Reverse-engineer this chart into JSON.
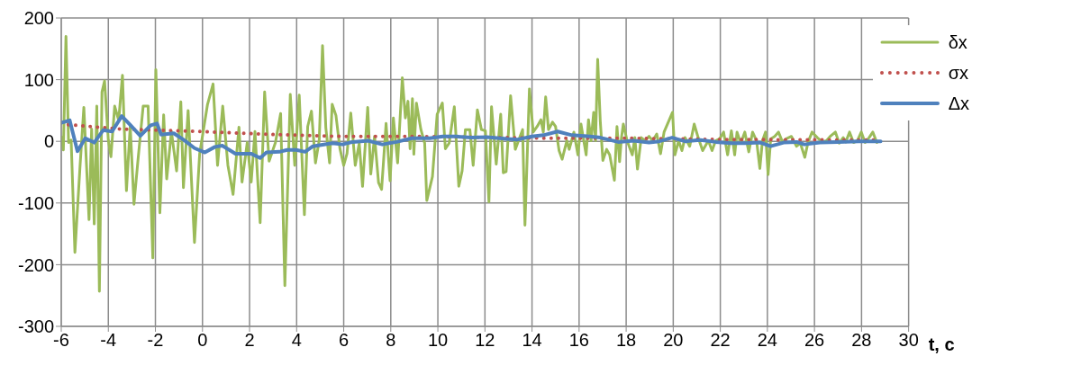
{
  "chart_data": {
    "type": "line",
    "xlabel": "t, c",
    "xlim": [
      -6,
      30
    ],
    "xticks": [
      -6,
      -4,
      -2,
      0,
      2,
      4,
      6,
      8,
      10,
      12,
      14,
      16,
      18,
      20,
      22,
      24,
      26,
      28,
      30
    ],
    "ylim": [
      -300,
      200
    ],
    "yticks": [
      -300,
      -200,
      -100,
      0,
      100,
      200
    ],
    "grid": true,
    "legend": "top right",
    "marker": "none",
    "series": [
      {
        "name": "δx",
        "color": "#9bbb59",
        "line_style": "solid",
        "x": [
          -6.0,
          -5.91,
          -5.8,
          -5.69,
          -5.58,
          -5.42,
          -5.2,
          -5.04,
          -4.82,
          -4.71,
          -4.6,
          -4.49,
          -4.38,
          -4.27,
          -4.16,
          -4.0,
          -3.89,
          -3.73,
          -3.56,
          -3.4,
          -3.23,
          -3.07,
          -2.91,
          -2.74,
          -2.52,
          -2.31,
          -2.11,
          -1.98,
          -1.81,
          -1.65,
          -1.52,
          -1.32,
          -1.1,
          -0.92,
          -0.81,
          -0.61,
          -0.34,
          -0.12,
          0.21,
          0.45,
          0.64,
          0.86,
          1.08,
          1.3,
          1.55,
          1.68,
          1.9,
          2.07,
          2.23,
          2.45,
          2.64,
          2.83,
          3.1,
          3.32,
          3.5,
          3.73,
          3.92,
          4.11,
          4.33,
          4.47,
          4.63,
          4.8,
          4.96,
          5.1,
          5.24,
          5.4,
          5.51,
          5.67,
          5.84,
          6.0,
          6.14,
          6.3,
          6.49,
          6.66,
          6.8,
          7.02,
          7.15,
          7.31,
          7.48,
          7.61,
          7.8,
          7.97,
          8.11,
          8.29,
          8.49,
          8.62,
          8.73,
          8.82,
          8.92,
          8.98,
          9.09,
          9.28,
          9.44,
          9.53,
          9.77,
          9.97,
          10.19,
          10.32,
          10.48,
          10.7,
          10.89,
          11.03,
          11.17,
          11.36,
          11.5,
          11.68,
          11.85,
          12.02,
          12.17,
          12.28,
          12.48,
          12.67,
          12.78,
          12.9,
          13.09,
          13.29,
          13.6,
          13.7,
          13.89,
          14.05,
          14.22,
          14.38,
          14.48,
          14.58,
          14.7,
          14.87,
          15.0,
          15.15,
          15.28,
          15.48,
          15.58,
          15.78,
          15.95,
          16.08,
          16.3,
          16.4,
          16.51,
          16.62,
          16.7,
          16.79,
          16.9,
          17.01,
          17.17,
          17.3,
          17.5,
          17.61,
          17.72,
          17.8,
          17.88,
          18.04,
          18.26,
          18.37,
          18.48,
          18.64,
          18.8,
          18.97,
          19.13,
          19.3,
          19.46,
          19.61,
          19.79,
          19.97,
          20.07,
          20.23,
          20.37,
          20.5,
          20.7,
          20.89,
          21.06,
          21.25,
          21.49,
          21.65,
          21.8,
          21.97,
          22.14,
          22.31,
          22.47,
          22.61,
          22.71,
          22.87,
          23.04,
          23.21,
          23.37,
          23.54,
          23.68,
          23.79,
          23.92,
          24.03,
          24.14,
          24.31,
          24.47,
          24.64,
          24.8,
          25.02,
          25.24,
          25.4,
          25.59,
          25.73,
          25.9,
          26.12,
          26.34,
          26.51,
          26.67,
          26.89,
          27.05,
          27.22,
          27.33,
          27.49,
          27.66,
          27.82,
          27.99,
          28.15,
          28.32,
          28.48,
          28.65
        ],
        "values": [
          7,
          -14,
          170,
          -2,
          2,
          -180,
          -39,
          55,
          -127,
          20,
          -134,
          57,
          -243,
          80,
          98,
          2,
          -25,
          57,
          34,
          107,
          -80,
          25,
          -102,
          -30,
          57,
          57,
          -189,
          116,
          -116,
          43,
          -61,
          16,
          -48,
          64,
          -75,
          50,
          -164,
          -20,
          59,
          93,
          -39,
          57,
          -39,
          -86,
          23,
          -66,
          -2,
          -66,
          16,
          -132,
          80,
          -32,
          -2,
          45,
          -234,
          76,
          -39,
          75,
          -119,
          24,
          49,
          -35,
          2,
          155,
          22,
          -35,
          60,
          42,
          -12,
          -39,
          -20,
          46,
          -39,
          -3,
          -73,
          55,
          -53,
          8,
          -67,
          -78,
          29,
          -64,
          38,
          -35,
          103,
          38,
          65,
          -12,
          69,
          -21,
          62,
          19,
          -3,
          -96,
          -57,
          44,
          62,
          -12,
          -3,
          56,
          -73,
          -48,
          19,
          19,
          -39,
          51,
          19,
          17,
          -98,
          56,
          -37,
          44,
          -51,
          -49,
          74,
          -13,
          19,
          -136,
          85,
          15,
          24,
          35,
          15,
          72,
          19,
          31,
          24,
          -15,
          -29,
          1,
          -13,
          15,
          -22,
          28,
          -22,
          35,
          1,
          47,
          1,
          133,
          33,
          -31,
          -13,
          -22,
          -63,
          24,
          -33,
          6,
          28,
          1,
          -22,
          6,
          -45,
          6,
          1,
          8,
          1,
          12,
          -20,
          15,
          31,
          47,
          -22,
          1,
          -15,
          6,
          -8,
          28,
          6,
          -15,
          1,
          -15,
          1,
          4,
          15,
          -22,
          17,
          -22,
          15,
          -3,
          15,
          -17,
          15,
          1,
          -44,
          1,
          15,
          -54,
          4,
          8,
          15,
          -1,
          4,
          8,
          -8,
          -3,
          -26,
          -1,
          15,
          6,
          -1,
          1,
          8,
          15,
          -3,
          6,
          -1,
          15,
          -2,
          1,
          15,
          -2,
          6,
          15,
          -2
        ]
      },
      {
        "name": "σx",
        "color": "#c0504d",
        "line_style": "dotted",
        "x": [
          -5.7,
          -3.5,
          -1.87,
          -0.12,
          3.05,
          5.95,
          8.9,
          11.0,
          14.7,
          18.0,
          22.0,
          28.5
        ],
        "values": [
          27,
          20,
          18,
          16,
          11,
          8,
          8,
          7,
          5,
          5,
          3,
          2
        ]
      },
      {
        "name": "Δx",
        "color": "#4f81bd",
        "line_style": "solid",
        "x": [
          -6.0,
          -5.64,
          -5.31,
          -4.98,
          -4.6,
          -4.22,
          -3.84,
          -3.43,
          -3.08,
          -2.64,
          -2.2,
          -1.93,
          -1.76,
          -1.22,
          -0.78,
          -0.34,
          0.1,
          0.53,
          0.84,
          1.4,
          2.06,
          2.45,
          2.72,
          3.27,
          3.6,
          3.98,
          4.36,
          4.69,
          5.51,
          5.95,
          6.38,
          7.04,
          7.64,
          8.24,
          8.9,
          9.66,
          10.21,
          10.75,
          11.41,
          12.07,
          12.94,
          13.4,
          14.0,
          14.49,
          15.09,
          15.69,
          16.46,
          16.9,
          17.66,
          18.32,
          18.97,
          19.41,
          19.95,
          20.5,
          21.15,
          21.81,
          22.47,
          23.04,
          23.7,
          24.14,
          24.69,
          25.24,
          25.57,
          26.23,
          27.0,
          27.88,
          28.81
        ],
        "values": [
          30,
          34,
          -16,
          5,
          -2,
          18,
          16,
          41,
          27,
          9,
          26,
          29,
          11,
          13,
          2,
          -11,
          -18,
          -9,
          -7,
          -20,
          -20,
          -27,
          -18,
          -17,
          -14,
          -14,
          -17,
          -8,
          -3,
          -5,
          -1,
          1,
          -5,
          -1,
          5,
          5,
          8,
          8,
          6,
          7,
          4,
          3,
          8,
          10,
          16,
          10,
          8,
          6,
          -1,
          1,
          -2,
          0,
          6,
          0,
          2,
          -1,
          -3,
          -3,
          -2,
          -8,
          -2,
          -1,
          -5,
          -2,
          -1,
          0,
          0
        ]
      }
    ]
  }
}
